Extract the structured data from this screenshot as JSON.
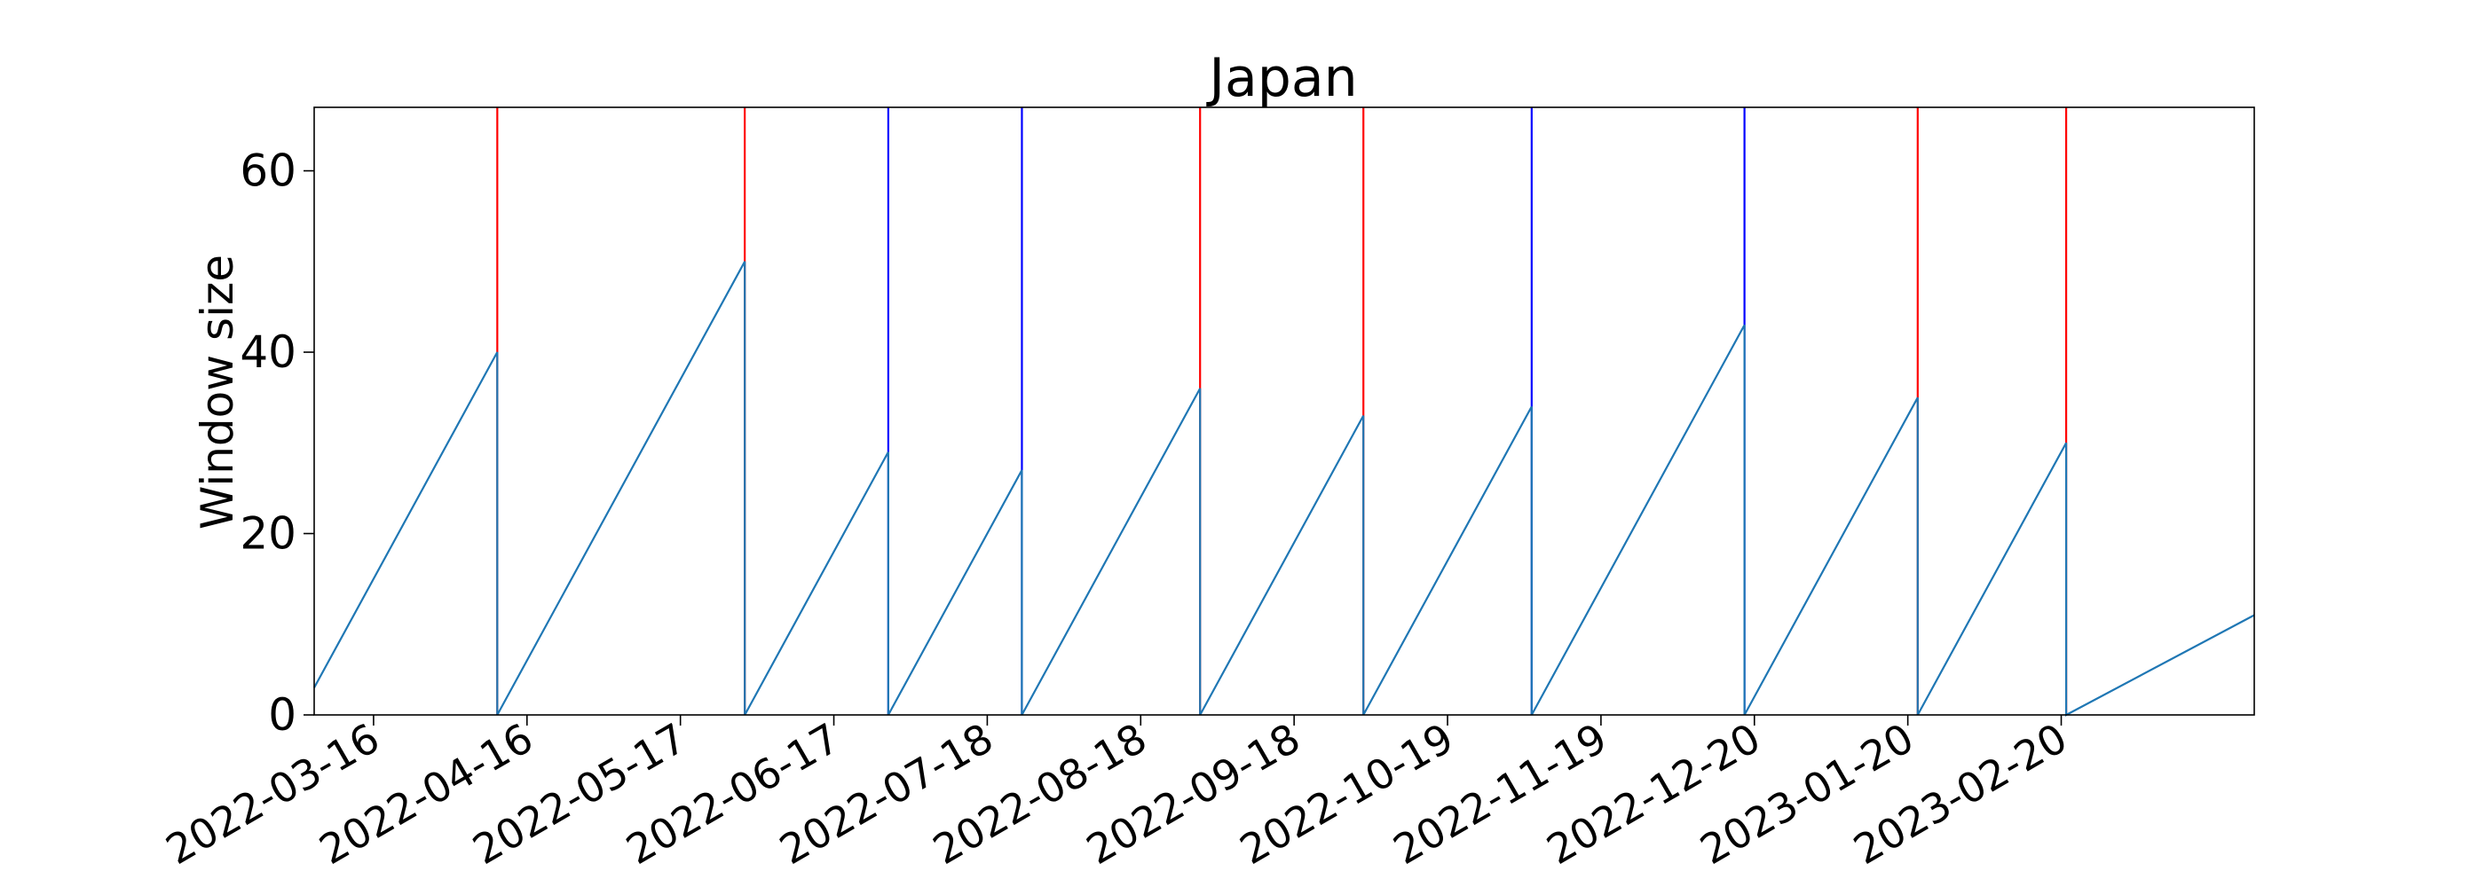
{
  "chart_data": {
    "type": "line",
    "title": "Japan",
    "ylabel": "Window size",
    "xlabel": "",
    "xlim": [
      "2022-03-04",
      "2023-03-31"
    ],
    "ylim": [
      0,
      67
    ],
    "yticks": [
      0,
      20,
      40,
      60
    ],
    "xticks": [
      "2022-03-16",
      "2022-04-16",
      "2022-05-17",
      "2022-06-17",
      "2022-07-18",
      "2022-08-18",
      "2022-09-18",
      "2022-10-19",
      "2022-11-19",
      "2022-12-20",
      "2023-01-20",
      "2023-02-20"
    ],
    "grid": false,
    "colors": {
      "window": "#1f77b4",
      "red_marker": "#ff0000",
      "blue_marker": "#0000ff"
    },
    "series": [
      {
        "x": [
          "2022-03-04",
          "2022-04-10",
          "2022-04-10",
          "2022-05-30",
          "2022-05-30",
          "2022-06-28",
          "2022-06-28",
          "2022-07-25",
          "2022-07-25",
          "2022-08-30",
          "2022-08-30",
          "2022-10-02",
          "2022-10-02",
          "2022-11-05",
          "2022-11-05",
          "2022-12-18",
          "2022-12-18",
          "2023-01-22",
          "2023-01-22",
          "2023-02-21",
          "2023-02-21",
          "2023-03-31"
        ],
        "y": [
          3,
          40,
          0,
          50,
          0,
          29,
          0,
          27,
          0,
          36,
          0,
          33,
          0,
          34,
          0,
          43,
          0,
          35,
          0,
          30,
          0,
          11
        ]
      }
    ],
    "vlines": [
      {
        "date": "2022-04-10",
        "color": "red"
      },
      {
        "date": "2022-05-30",
        "color": "red"
      },
      {
        "date": "2022-06-28",
        "color": "blue"
      },
      {
        "date": "2022-07-25",
        "color": "blue"
      },
      {
        "date": "2022-08-30",
        "color": "red"
      },
      {
        "date": "2022-10-02",
        "color": "red"
      },
      {
        "date": "2022-11-05",
        "color": "blue"
      },
      {
        "date": "2022-12-18",
        "color": "blue"
      },
      {
        "date": "2023-01-22",
        "color": "red"
      },
      {
        "date": "2023-02-21",
        "color": "red"
      }
    ]
  }
}
